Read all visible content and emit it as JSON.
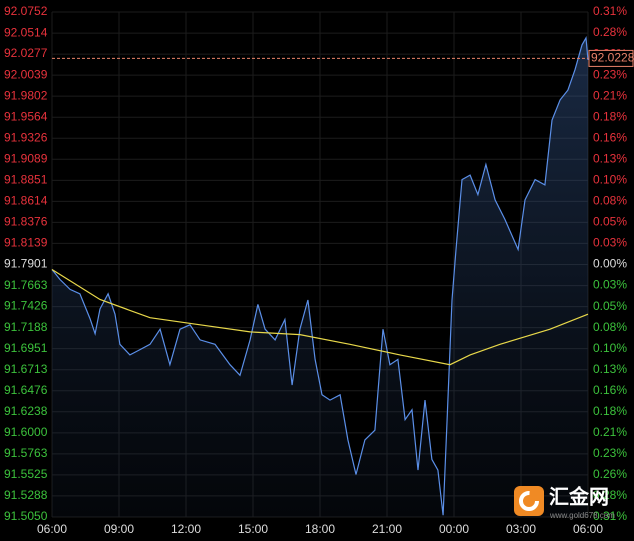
{
  "chart_data": {
    "type": "line",
    "ylim": [
      91.505,
      92.0752
    ],
    "yticks": [
      92.0752,
      92.0514,
      92.0277,
      92.0039,
      91.9802,
      91.9564,
      91.9326,
      91.9089,
      91.8851,
      91.8614,
      91.8376,
      91.8139,
      91.7901,
      91.7663,
      91.7426,
      91.7188,
      91.6951,
      91.6713,
      91.6476,
      91.6238,
      {
        "value": 91.6,
        "label": "91.6000"
      },
      91.5763,
      91.5525,
      91.5288,
      {
        "value": 91.505,
        "label": "91.5050"
      }
    ],
    "y2lim": [
      -0.3102,
      0.3102
    ],
    "y2ticks": [
      {
        "value": 0.3102,
        "label": "0.31%"
      },
      {
        "value": 0.28435,
        "label": "0.28%"
      },
      {
        "value": 0.2585,
        "label": "0.26%"
      },
      {
        "value": 0.23265,
        "label": "0.23%"
      },
      {
        "value": 0.2068,
        "label": "0.21%"
      },
      {
        "value": 0.18095,
        "label": "0.18%"
      },
      {
        "value": 0.1551,
        "label": "0.16%"
      },
      {
        "value": 0.12925,
        "label": "0.13%"
      },
      {
        "value": 0.1034,
        "label": "0.10%"
      },
      {
        "value": 0.07755,
        "label": "0.08%"
      },
      {
        "value": 0.0517,
        "label": "0.05%"
      },
      {
        "value": 0.02585,
        "label": "0.03%"
      },
      {
        "value": 0,
        "label": "0.00%"
      },
      {
        "value": -0.02585,
        "label": "0.03%"
      },
      {
        "value": -0.0517,
        "label": "0.05%"
      },
      {
        "value": -0.07755,
        "label": "0.08%"
      },
      {
        "value": -0.1034,
        "label": "0.10%"
      },
      {
        "value": -0.12925,
        "label": "0.13%"
      },
      {
        "value": -0.1551,
        "label": "0.16%"
      },
      {
        "value": -0.18095,
        "label": "0.18%"
      },
      {
        "value": -0.2068,
        "label": "0.21%"
      },
      {
        "value": -0.23265,
        "label": "0.23%"
      },
      {
        "value": -0.2585,
        "label": "0.26%"
      },
      {
        "value": -0.28435,
        "label": "0.28%"
      },
      {
        "value": -0.3102,
        "label": "0.31%"
      }
    ],
    "xlim": [
      0,
      24
    ],
    "xticks": [
      {
        "value": 0,
        "label": "06:00"
      },
      {
        "value": 3,
        "label": "09:00"
      },
      {
        "value": 6,
        "label": "12:00"
      },
      {
        "value": 9,
        "label": "15:00"
      },
      {
        "value": 12,
        "label": "18:00"
      },
      {
        "value": 15,
        "label": "21:00"
      },
      {
        "value": 18,
        "label": "00:00"
      },
      {
        "value": 21,
        "label": "03:00"
      },
      {
        "value": 24,
        "label": "06:00"
      }
    ],
    "grid": true,
    "up_color": "#e8323c",
    "down_color": "#3cc23c",
    "flat_color": "#dddddd",
    "current_value": 92.0228,
    "current_color": "#e8826a",
    "series": [
      {
        "color": "#5b8fe8",
        "x": [
          0,
          0.36,
          0.81,
          1.25,
          1.7,
          1.93,
          2.15,
          2.51,
          2.82,
          3.04,
          3.49,
          3.94,
          4.39,
          4.84,
          5.28,
          5.73,
          6.18,
          6.63,
          7.3,
          7.97,
          8.42,
          8.87,
          9.22,
          9.54,
          9.99,
          10.43,
          10.75,
          11.1,
          11.46,
          11.78,
          12.09,
          12.45,
          12.9,
          13.25,
          13.61,
          14.01,
          14.46,
          14.82,
          15.13,
          15.49,
          15.81,
          16.12,
          16.39,
          16.7,
          17.01,
          17.28,
          17.51,
          17.69,
          17.91,
          18.09,
          18.36,
          18.72,
          19.07,
          19.43,
          19.84,
          20.28,
          20.87,
          21.18,
          21.63,
          22.07,
          22.39,
          22.75,
          23.1,
          23.42,
          23.73,
          23.91,
          24
        ],
        "values": [
          91.7845,
          91.7732,
          91.762,
          91.757,
          91.729,
          91.712,
          91.74,
          91.757,
          91.734,
          91.7,
          91.688,
          91.694,
          91.7,
          91.717,
          91.677,
          91.717,
          91.722,
          91.705,
          91.7,
          91.677,
          91.665,
          91.705,
          91.745,
          91.717,
          91.705,
          91.728,
          91.654,
          91.717,
          91.75,
          91.683,
          91.643,
          91.637,
          91.643,
          91.592,
          91.553,
          91.592,
          91.603,
          91.717,
          91.677,
          91.683,
          91.615,
          91.626,
          91.558,
          91.637,
          91.57,
          91.558,
          91.507,
          91.615,
          91.75,
          91.807,
          91.886,
          91.891,
          91.869,
          91.903,
          91.863,
          91.841,
          91.807,
          91.863,
          91.886,
          91.88,
          91.953,
          91.976,
          91.987,
          92.01,
          92.038,
          92.046,
          92.021
        ]
      },
      {
        "color": "#e8d84a",
        "x": [
          0,
          2.15,
          4.39,
          6.63,
          8.87,
          11.1,
          13.34,
          15.58,
          17.82,
          18.72,
          20.06,
          22.3,
          24
        ],
        "values": [
          91.7845,
          91.7506,
          91.73,
          91.722,
          91.714,
          91.711,
          91.7,
          91.688,
          91.677,
          91.688,
          91.7,
          91.717,
          91.734
        ]
      }
    ],
    "watermark": {
      "title": "汇金网",
      "url": "www.gold678.com"
    }
  }
}
